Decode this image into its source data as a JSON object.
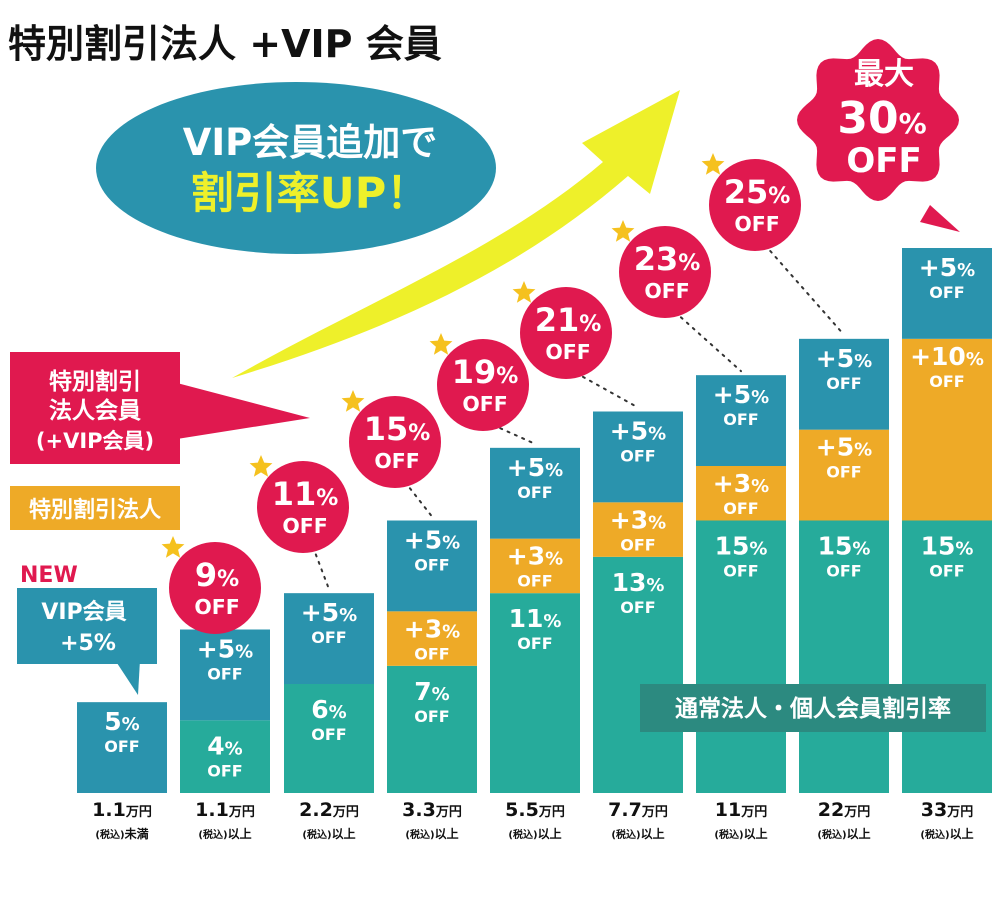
{
  "chart_data": {
    "type": "bar",
    "stacked": true,
    "title": "特別割引法人 +VIP 会員",
    "categories": [
      {
        "amount": "1.1",
        "unit": "万円",
        "note": "(税込)",
        "cond": "未満"
      },
      {
        "amount": "1.1",
        "unit": "万円",
        "note": "(税込)",
        "cond": "以上"
      },
      {
        "amount": "2.2",
        "unit": "万円",
        "note": "(税込)",
        "cond": "以上"
      },
      {
        "amount": "3.3",
        "unit": "万円",
        "note": "(税込)",
        "cond": "以上"
      },
      {
        "amount": "5.5",
        "unit": "万円",
        "note": "(税込)",
        "cond": "以上"
      },
      {
        "amount": "7.7",
        "unit": "万円",
        "note": "(税込)",
        "cond": "以上"
      },
      {
        "amount": "11",
        "unit": "万円",
        "note": "(税込)",
        "cond": "以上"
      },
      {
        "amount": "22",
        "unit": "万円",
        "note": "(税込)",
        "cond": "以上"
      },
      {
        "amount": "33",
        "unit": "万円",
        "note": "(税込)",
        "cond": "以上"
      }
    ],
    "series": [
      {
        "key": "base",
        "name": "通常法人・個人会員割引率",
        "color": "#26ab9b",
        "values": [
          0,
          4,
          6,
          7,
          11,
          13,
          15,
          15,
          15
        ]
      },
      {
        "key": "special",
        "name": "特別割引法人",
        "color": "#eeaa27",
        "values": [
          0,
          0,
          0,
          3,
          3,
          3,
          3,
          5,
          10
        ]
      },
      {
        "key": "vip",
        "name": "VIP会員 +5%",
        "color": "#2a93ad",
        "values": [
          5,
          5,
          5,
          5,
          5,
          5,
          5,
          5,
          5
        ]
      }
    ],
    "segment_labels": [
      [
        {
          "num": "5",
          "pct": "%",
          "off": "OFF"
        }
      ],
      [
        {
          "num": "4",
          "pct": "%",
          "off": "OFF"
        },
        {
          "num": "+5",
          "pct": "%",
          "off": "OFF"
        }
      ],
      [
        {
          "num": "6",
          "pct": "%",
          "off": "OFF"
        },
        {
          "num": "+5",
          "pct": "%",
          "off": "OFF"
        }
      ],
      [
        {
          "num": "7",
          "pct": "%",
          "off": "OFF"
        },
        {
          "num": "+3",
          "pct": "%",
          "off": "OFF"
        },
        {
          "num": "+5",
          "pct": "%",
          "off": "OFF"
        }
      ],
      [
        {
          "num": "11",
          "pct": "%",
          "off": "OFF"
        },
        {
          "num": "+3",
          "pct": "%",
          "off": "OFF"
        },
        {
          "num": "+5",
          "pct": "%",
          "off": "OFF"
        }
      ],
      [
        {
          "num": "13",
          "pct": "%",
          "off": "OFF"
        },
        {
          "num": "+3",
          "pct": "%",
          "off": "OFF"
        },
        {
          "num": "+5",
          "pct": "%",
          "off": "OFF"
        }
      ],
      [
        {
          "num": "15",
          "pct": "%",
          "off": "OFF"
        },
        {
          "num": "+3",
          "pct": "%",
          "off": "OFF"
        },
        {
          "num": "+5",
          "pct": "%",
          "off": "OFF"
        }
      ],
      [
        {
          "num": "15",
          "pct": "%",
          "off": "OFF"
        },
        {
          "num": "+5",
          "pct": "%",
          "off": "OFF"
        },
        {
          "num": "+5",
          "pct": "%",
          "off": "OFF"
        }
      ],
      [
        {
          "num": "15",
          "pct": "%",
          "off": "OFF"
        },
        {
          "num": "+10",
          "pct": "%",
          "off": "OFF"
        },
        {
          "num": "+5",
          "pct": "%",
          "off": "OFF"
        }
      ]
    ],
    "totals": [
      null,
      {
        "num": "9",
        "pct": "%",
        "off": "OFF"
      },
      {
        "num": "11",
        "pct": "%",
        "off": "OFF"
      },
      {
        "num": "15",
        "pct": "%",
        "off": "OFF"
      },
      {
        "num": "19",
        "pct": "%",
        "off": "OFF"
      },
      {
        "num": "21",
        "pct": "%",
        "off": "OFF"
      },
      {
        "num": "23",
        "pct": "%",
        "off": "OFF"
      },
      {
        "num": "25",
        "pct": "%",
        "off": "OFF"
      },
      {
        "prefix": "最大",
        "num": "30",
        "pct": "%",
        "off": "OFF"
      }
    ],
    "legend": {
      "vip_combo": [
        "特別割引",
        "法人会員",
        "(+VIP会員)"
      ],
      "special": "特別割引法人",
      "new_tag": "NEW",
      "vip": [
        "VIP会員",
        "+5%"
      ],
      "base": "通常法人・個人会員割引率"
    },
    "callout": [
      "VIP会員追加で",
      "割引率UP！"
    ],
    "colors": {
      "teal": "#26ab9b",
      "blue": "#2a93ad",
      "orange": "#eeaa27",
      "magenta": "#e0194f",
      "star": "#f5c11e",
      "arrow": "#eef02a",
      "callout_bg": "#2a93ad",
      "callout_line1": "#ffffff",
      "callout_line2": "#eef02a",
      "new_text": "#e0194f",
      "base_label_bg": "#2c8a80"
    }
  }
}
